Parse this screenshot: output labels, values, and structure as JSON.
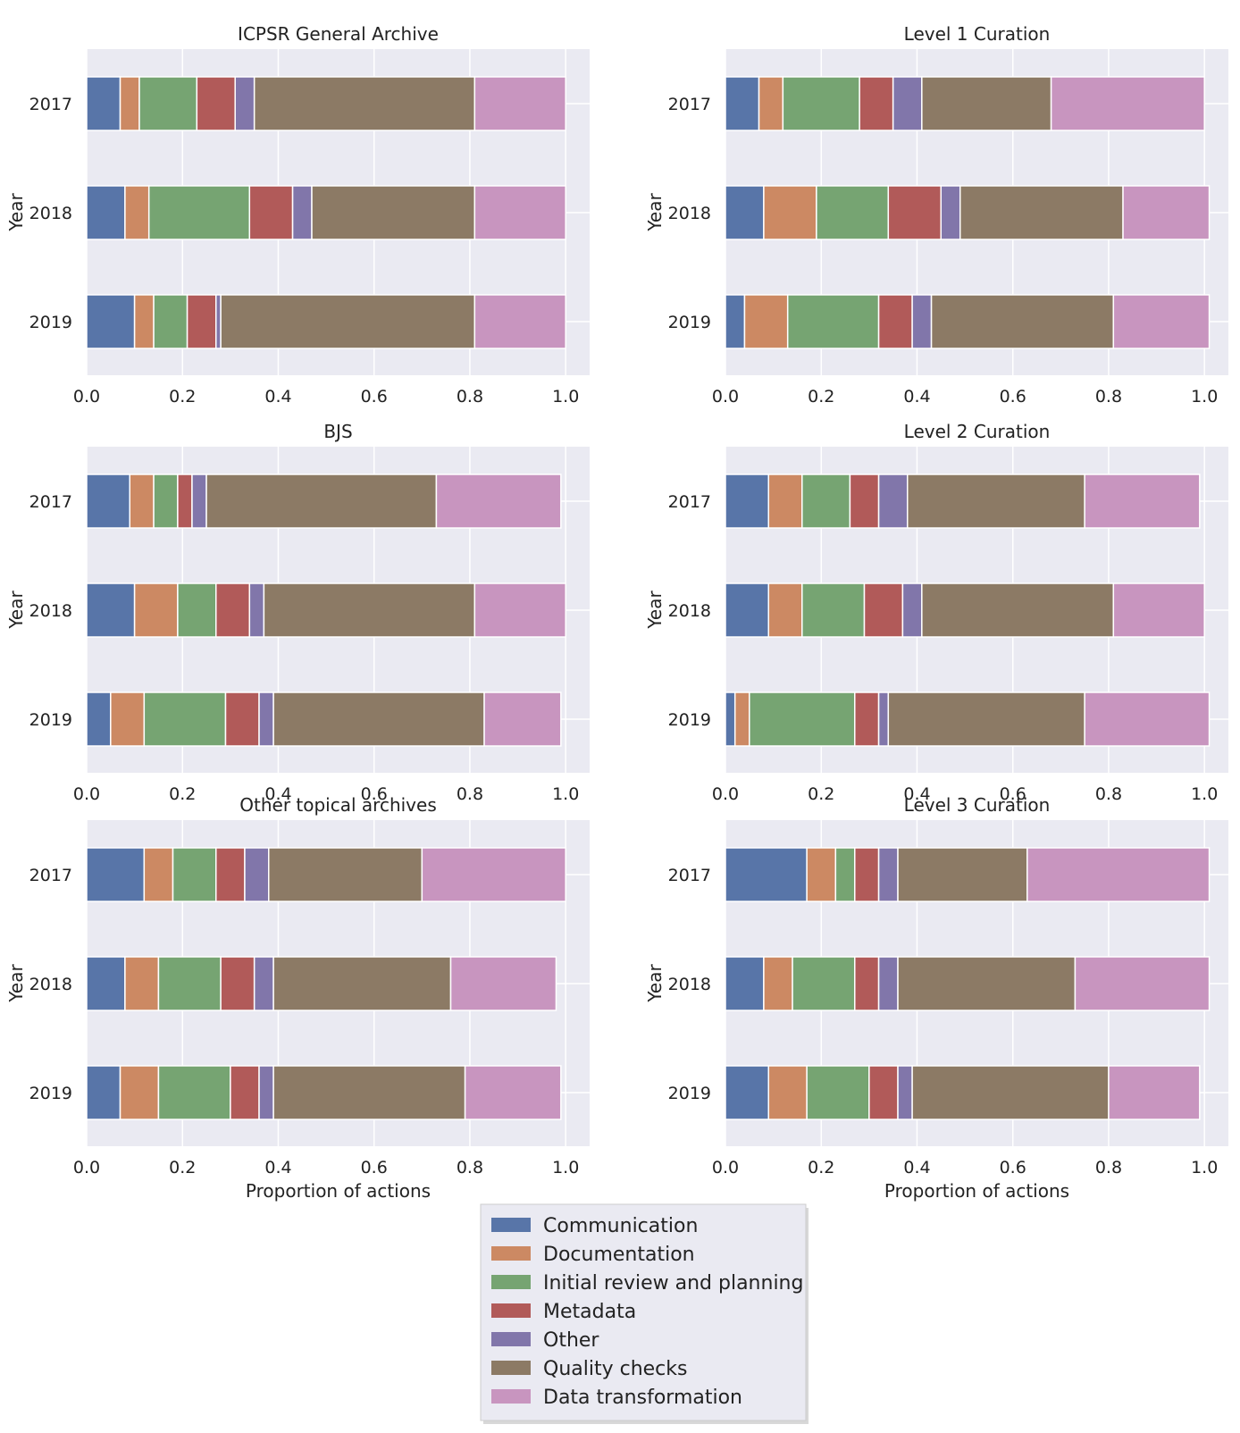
{
  "chart_data": {
    "type": "bar",
    "orientation": "horizontal",
    "stacked": true,
    "categories": [
      "Communication",
      "Documentation",
      "Initial review and planning",
      "Metadata",
      "Other",
      "Quality checks",
      "Data transformation"
    ],
    "colors": [
      "#5875a8",
      "#cc8963",
      "#76a472",
      "#b15a59",
      "#8176aa",
      "#8c7a65",
      "#c895bf"
    ],
    "xlabel": "Proportion of actions",
    "ylabel": "Year",
    "xlim": [
      0,
      1.05
    ],
    "xticks": [
      "0.0",
      "0.2",
      "0.4",
      "0.6",
      "0.8",
      "1.0"
    ],
    "legend": {
      "placement": "bottom-center",
      "entries": [
        "Communication",
        "Documentation",
        "Initial review and planning",
        "Metadata",
        "Other",
        "Quality checks",
        "Data transformation"
      ]
    },
    "panels": [
      {
        "title": "ICPSR General Archive",
        "years": [
          "2017",
          "2018",
          "2019"
        ],
        "segments": [
          [
            0.07,
            0.04,
            0.12,
            0.08,
            0.04,
            0.46,
            0.19
          ],
          [
            0.08,
            0.05,
            0.21,
            0.09,
            0.04,
            0.34,
            0.19
          ],
          [
            0.1,
            0.04,
            0.07,
            0.06,
            0.01,
            0.53,
            0.19
          ]
        ]
      },
      {
        "title": "Level 1 Curation",
        "years": [
          "2017",
          "2018",
          "2019"
        ],
        "segments": [
          [
            0.07,
            0.05,
            0.16,
            0.07,
            0.06,
            0.27,
            0.32
          ],
          [
            0.08,
            0.11,
            0.15,
            0.11,
            0.04,
            0.34,
            0.18
          ],
          [
            0.04,
            0.09,
            0.19,
            0.07,
            0.04,
            0.38,
            0.2
          ]
        ]
      },
      {
        "title": "BJS",
        "years": [
          "2017",
          "2018",
          "2019"
        ],
        "segments": [
          [
            0.09,
            0.05,
            0.05,
            0.03,
            0.03,
            0.48,
            0.26
          ],
          [
            0.1,
            0.09,
            0.08,
            0.07,
            0.03,
            0.44,
            0.19
          ],
          [
            0.05,
            0.07,
            0.17,
            0.07,
            0.03,
            0.44,
            0.16
          ]
        ]
      },
      {
        "title": "Level 2 Curation",
        "years": [
          "2017",
          "2018",
          "2019"
        ],
        "segments": [
          [
            0.09,
            0.07,
            0.1,
            0.06,
            0.06,
            0.37,
            0.24
          ],
          [
            0.09,
            0.07,
            0.13,
            0.08,
            0.04,
            0.4,
            0.19
          ],
          [
            0.02,
            0.03,
            0.22,
            0.05,
            0.02,
            0.41,
            0.26
          ]
        ]
      },
      {
        "title": "Other topical archives",
        "years": [
          "2017",
          "2018",
          "2019"
        ],
        "segments": [
          [
            0.12,
            0.06,
            0.09,
            0.06,
            0.05,
            0.32,
            0.3
          ],
          [
            0.08,
            0.07,
            0.13,
            0.07,
            0.04,
            0.37,
            0.22
          ],
          [
            0.07,
            0.08,
            0.15,
            0.06,
            0.03,
            0.4,
            0.2
          ]
        ]
      },
      {
        "title": "Level 3 Curation",
        "years": [
          "2017",
          "2018",
          "2019"
        ],
        "segments": [
          [
            0.17,
            0.06,
            0.04,
            0.05,
            0.04,
            0.27,
            0.38
          ],
          [
            0.08,
            0.06,
            0.13,
            0.05,
            0.04,
            0.37,
            0.28
          ],
          [
            0.09,
            0.08,
            0.13,
            0.06,
            0.03,
            0.41,
            0.19
          ]
        ]
      }
    ]
  }
}
